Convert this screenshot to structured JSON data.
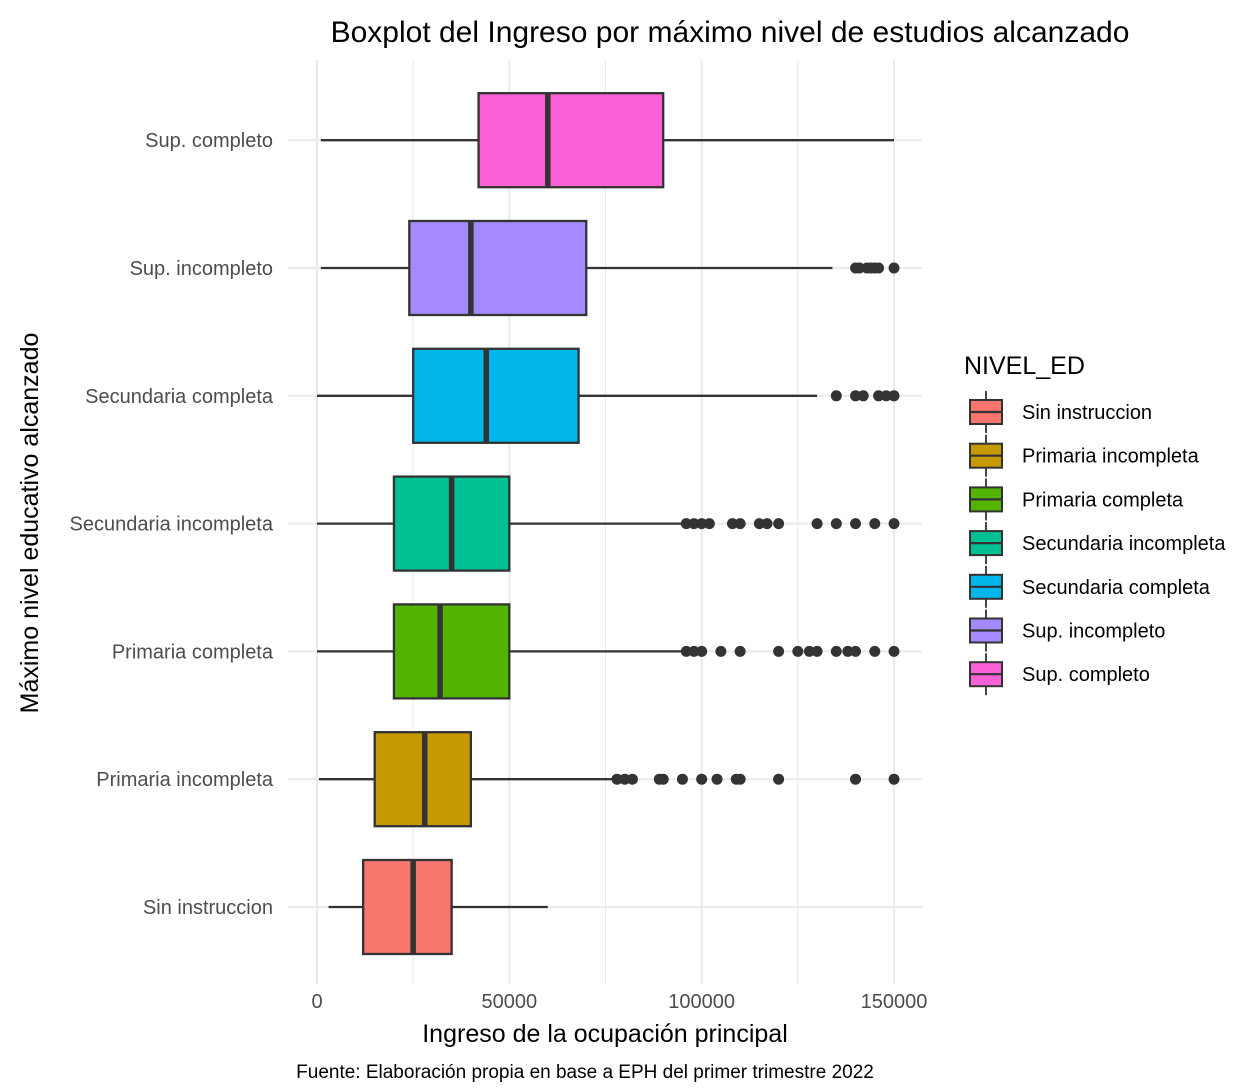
{
  "chart_data": {
    "type": "boxplot",
    "title": "Boxplot del Ingreso por máximo nivel de estudios alcanzado",
    "xlabel": "Ingreso de la ocupación principal",
    "ylabel": "Máximo nivel educativo alcanzado",
    "caption": "Fuente: Elaboración propia en base a EPH del primer trimestre 2022",
    "xlim": [
      -3000,
      157000
    ],
    "x_ticks": [
      0,
      50000,
      100000,
      150000
    ],
    "x_tick_labels": [
      "0",
      "50000",
      "100000",
      "150000"
    ],
    "grid": true,
    "legend": {
      "title": "NIVEL_ED",
      "position": "right",
      "entries": [
        "Sin instruccion",
        "Primaria incompleta",
        "Primaria completa",
        "Secundaria incompleta",
        "Secundaria completa",
        "Sup. incompleto",
        "Sup. completo"
      ]
    },
    "series": [
      {
        "name": "Sin instruccion",
        "color": "#F8766D",
        "min": 3000,
        "q1": 12000,
        "median": 25000,
        "q3": 35000,
        "max": 60000,
        "outliers": []
      },
      {
        "name": "Primaria incompleta",
        "color": "#C49A00",
        "min": 500,
        "q1": 15000,
        "median": 28000,
        "q3": 40000,
        "max": 77000,
        "outliers": [
          78000,
          80000,
          82000,
          89000,
          90000,
          95000,
          100000,
          104000,
          109000,
          110000,
          120000,
          140000,
          150000
        ]
      },
      {
        "name": "Primaria completa",
        "color": "#53B400",
        "min": 0,
        "q1": 20000,
        "median": 32000,
        "q3": 50000,
        "max": 95000,
        "outliers": [
          96000,
          98000,
          100000,
          105000,
          110000,
          120000,
          125000,
          128000,
          130000,
          135000,
          138000,
          140000,
          145000,
          150000
        ]
      },
      {
        "name": "Secundaria incompleta",
        "color": "#00C094",
        "min": 0,
        "q1": 20000,
        "median": 35000,
        "q3": 50000,
        "max": 95000,
        "outliers": [
          96000,
          98000,
          100000,
          102000,
          108000,
          110000,
          115000,
          117000,
          120000,
          130000,
          135000,
          140000,
          145000,
          150000
        ]
      },
      {
        "name": "Secundaria completa",
        "color": "#00B6EB",
        "min": 0,
        "q1": 25000,
        "median": 44000,
        "q3": 68000,
        "max": 130000,
        "outliers": [
          135000,
          140000,
          142000,
          146000,
          148000,
          150000
        ]
      },
      {
        "name": "Sup. incompleto",
        "color": "#A58AFF",
        "min": 1000,
        "q1": 24000,
        "median": 40000,
        "q3": 70000,
        "max": 134000,
        "outliers": [
          140000,
          141000,
          143000,
          144000,
          145000,
          146000,
          150000
        ]
      },
      {
        "name": "Sup. completo",
        "color": "#FB61D7",
        "min": 1000,
        "q1": 42000,
        "median": 60000,
        "q3": 90000,
        "max": 150000,
        "outliers": []
      }
    ]
  }
}
